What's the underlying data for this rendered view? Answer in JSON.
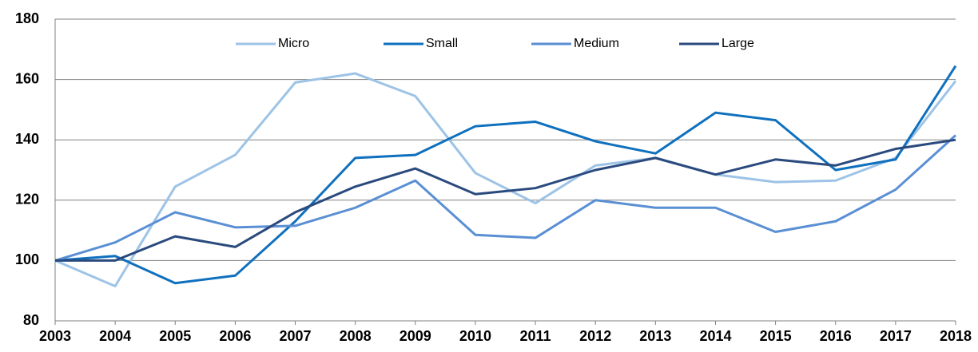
{
  "chart_data": {
    "type": "line",
    "categories": [
      "2003",
      "2004",
      "2005",
      "2006",
      "2007",
      "2008",
      "2009",
      "2010",
      "2011",
      "2012",
      "2013",
      "2014",
      "2015",
      "2016",
      "2017",
      "2018"
    ],
    "series": [
      {
        "name": "Micro",
        "color": "#9dc3e6",
        "values": [
          100,
          91.5,
          124.5,
          135,
          159,
          162,
          154.5,
          129,
          119,
          131.5,
          134,
          128.5,
          126,
          126.5,
          134,
          159.5
        ]
      },
      {
        "name": "Small",
        "color": "#0f70be",
        "values": [
          100,
          101.5,
          92.5,
          95,
          113,
          134,
          135,
          144.5,
          146,
          139.5,
          135.5,
          149,
          146.5,
          130,
          133.5,
          164.5
        ]
      },
      {
        "name": "Medium",
        "color": "#5a8fd4",
        "values": [
          100,
          106,
          116,
          111,
          111.5,
          117.5,
          126.5,
          108.5,
          107.5,
          120,
          117.5,
          117.5,
          109.5,
          113,
          123.5,
          141.5
        ]
      },
      {
        "name": "Large",
        "color": "#2a4a7e",
        "values": [
          100,
          100,
          108,
          104.5,
          116,
          124.5,
          130.5,
          122,
          124,
          130,
          134,
          128.5,
          133.5,
          131.5,
          137,
          140
        ]
      }
    ],
    "ylim": [
      80,
      180
    ],
    "yticks": [
      80,
      100,
      120,
      140,
      160,
      180
    ],
    "grid": true,
    "legend": "top"
  }
}
